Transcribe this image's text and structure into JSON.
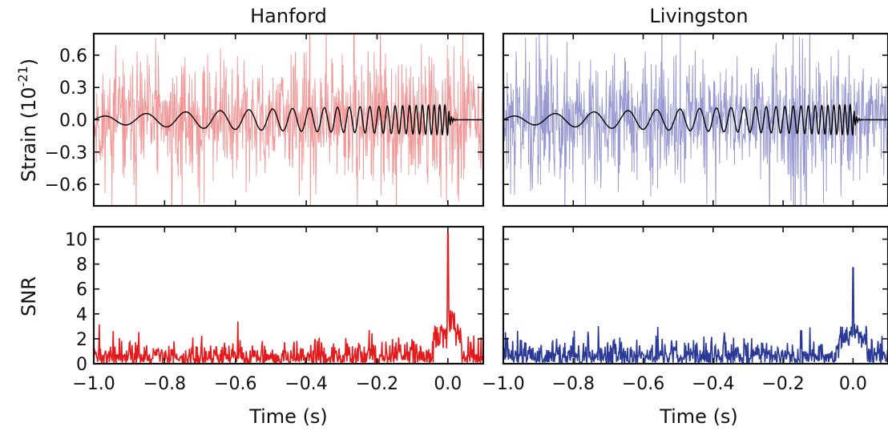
{
  "panel_titles": [
    "Hanford",
    "Livingston"
  ],
  "ylabel_strain": "Strain (10",
  "ylabel_strain_exp": "-21",
  "ylabel_strain_close": ")",
  "ylabel_snr": "SNR",
  "xlabel": "Time (s)",
  "colors": {
    "hanford_noise": "#f08c8c",
    "livingston_noise": "#8c8ccc",
    "hanford_snr": "#e41a1c",
    "livingston_snr": "#2b3a96",
    "template": "#000000"
  },
  "chart_data": [
    {
      "panel": "Hanford-strain",
      "type": "line",
      "title": "Hanford",
      "ylabel": "Strain (10^-21)",
      "xlim": [
        -1.0,
        0.1
      ],
      "ylim": [
        -0.8,
        0.8
      ],
      "yticks": [
        0.6,
        0.3,
        0.0,
        -0.3,
        -0.6
      ],
      "ytick_labels": [
        "0.6",
        "0.3",
        "0.0",
        "−0.3",
        "−0.6"
      ],
      "series": [
        {
          "role": "whitened strain",
          "noise_amplitude": 0.35,
          "color": "#f08c8c"
        },
        {
          "role": "template",
          "color": "#000000",
          "amp_start": 0.02,
          "amp_end": 0.14,
          "f_start": 30,
          "f_end": 250
        }
      ]
    },
    {
      "panel": "Livingston-strain",
      "type": "line",
      "title": "Livingston",
      "xlim": [
        -1.0,
        0.1
      ],
      "ylim": [
        -0.8,
        0.8
      ],
      "series": [
        {
          "role": "whitened strain",
          "noise_amplitude": 0.35,
          "color": "#8c8ccc"
        },
        {
          "role": "template",
          "color": "#000000",
          "amp_start": 0.02,
          "amp_end": 0.14,
          "f_start": 30,
          "f_end": 250
        }
      ]
    },
    {
      "panel": "Hanford-snr",
      "type": "line",
      "ylabel": "SNR",
      "xlabel": "Time (s)",
      "xlim": [
        -1.0,
        0.1
      ],
      "ylim": [
        0,
        11
      ],
      "xticks": [
        -1.0,
        -0.8,
        -0.6,
        -0.4,
        -0.2,
        0.0
      ],
      "xtick_labels": [
        "−1.0",
        "−0.8",
        "−0.6",
        "−0.4",
        "−0.2",
        "0.0"
      ],
      "yticks": [
        10,
        8,
        6,
        4,
        2,
        0
      ],
      "ytick_labels": [
        "10",
        "8",
        "6",
        "4",
        "2",
        "0"
      ],
      "baseline_level": 0.9,
      "peak": {
        "x": 0.0,
        "y": 10.5
      },
      "post_peak_level": 2.5,
      "color": "#e41a1c"
    },
    {
      "panel": "Livingston-snr",
      "type": "line",
      "xlabel": "Time (s)",
      "xlim": [
        -1.0,
        0.1
      ],
      "ylim": [
        0,
        11
      ],
      "xticks": [
        -1.0,
        -0.8,
        -0.6,
        -0.4,
        -0.2,
        0.0
      ],
      "xtick_labels": [
        "−1.0",
        "−0.8",
        "−0.6",
        "−0.4",
        "−0.2",
        "0.0"
      ],
      "baseline_level": 1.0,
      "peak": {
        "x": 0.0,
        "y": 7.7
      },
      "post_peak_level": 1.5,
      "color": "#2b3a96"
    }
  ]
}
